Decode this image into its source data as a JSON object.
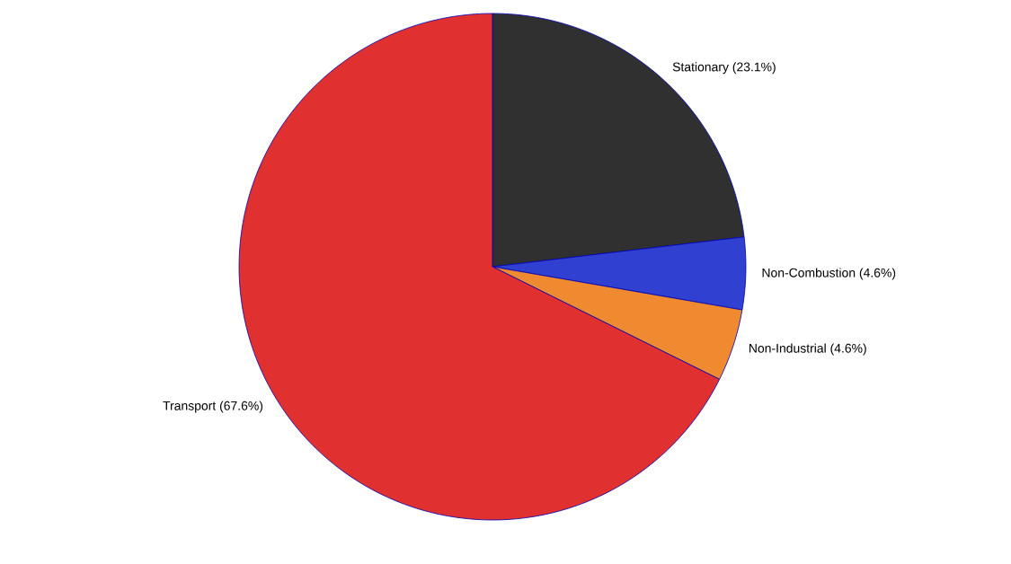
{
  "chart_data": {
    "type": "pie",
    "categories": [
      "Stationary",
      "Non-Combustion",
      "Non-Industrial",
      "Transport"
    ],
    "values": [
      23.1,
      4.6,
      4.6,
      67.6
    ],
    "value_labels": [
      "(23.1%)",
      "(4.6%)",
      "(4.6%)",
      "(67.6%)"
    ],
    "colors": [
      "#303030",
      "#3040d0",
      "#f08a30",
      "#e03030"
    ]
  }
}
